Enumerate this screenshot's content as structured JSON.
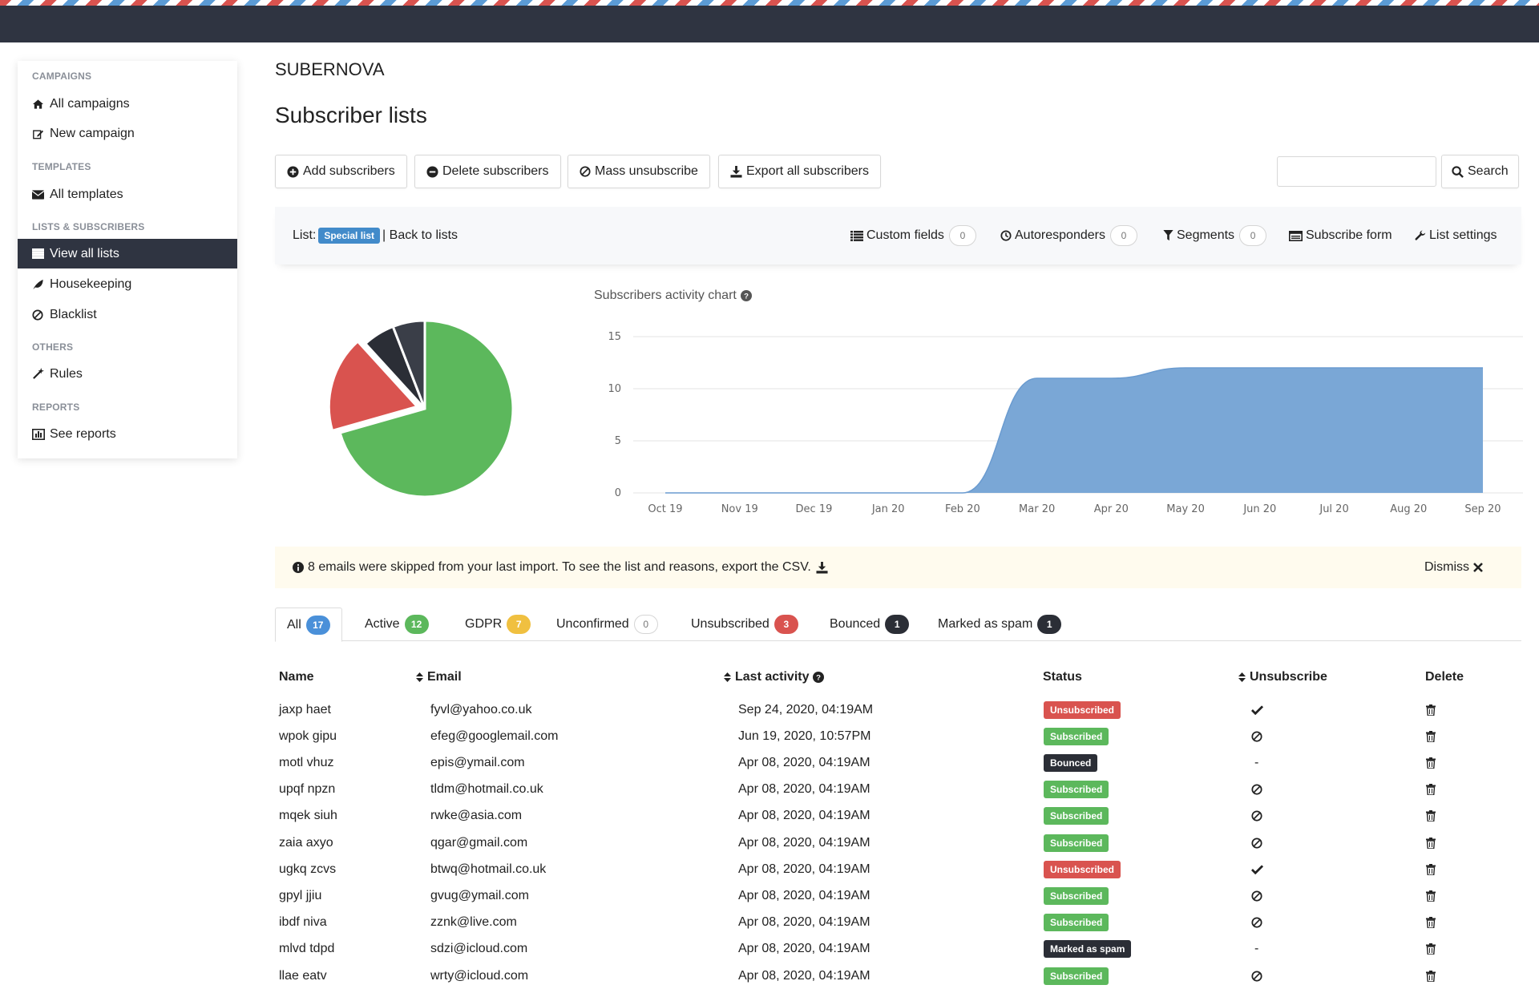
{
  "app": {
    "brand": "SUBERNOVA",
    "title": "Subscriber lists"
  },
  "sidebar": {
    "sections": [
      {
        "heading": "CAMPAIGNS",
        "items": [
          {
            "label": "All campaigns",
            "icon": "home-icon"
          },
          {
            "label": "New campaign",
            "icon": "edit-icon"
          }
        ]
      },
      {
        "heading": "TEMPLATES",
        "items": [
          {
            "label": "All templates",
            "icon": "envelope-icon"
          }
        ]
      },
      {
        "heading": "LISTS & SUBSCRIBERS",
        "items": [
          {
            "label": "View all lists",
            "icon": "list-icon",
            "active": true
          },
          {
            "label": "Housekeeping",
            "icon": "leaf-icon"
          },
          {
            "label": "Blacklist",
            "icon": "ban-icon"
          }
        ]
      },
      {
        "heading": "OTHERS",
        "items": [
          {
            "label": "Rules",
            "icon": "magic-wand-icon"
          }
        ]
      },
      {
        "heading": "REPORTS",
        "items": [
          {
            "label": "See reports",
            "icon": "bar-chart-icon"
          }
        ]
      }
    ]
  },
  "toolbar": {
    "add": "Add subscribers",
    "delete": "Delete subscribers",
    "mass_unsub": "Mass unsubscribe",
    "export": "Export all subscribers",
    "search_label": "Search",
    "search_value": ""
  },
  "listbar": {
    "list_prefix": "List:",
    "list_name": "Special list",
    "back": "| Back to lists",
    "custom_fields": "Custom fields",
    "custom_fields_count": "0",
    "autoresponders": "Autoresponders",
    "autoresponders_count": "0",
    "segments": "Segments",
    "segments_count": "0",
    "subscribe_form": "Subscribe form",
    "list_settings": "List settings"
  },
  "chart_title": "Subscribers activity chart",
  "chart_data": [
    {
      "type": "pie",
      "series": [
        {
          "name": "Active",
          "value": 12,
          "color": "#5cb85c"
        },
        {
          "name": "Unsubscribed",
          "value": 3,
          "color": "#d9534f"
        },
        {
          "name": "Bounced",
          "value": 1,
          "color": "#2b2e36"
        },
        {
          "name": "Marked as spam",
          "value": 1,
          "color": "#3a3e48"
        }
      ],
      "exploded_slice": "Unsubscribed"
    },
    {
      "type": "area",
      "title": "Subscribers activity chart",
      "categories": [
        "Oct 19",
        "Nov 19",
        "Dec 19",
        "Jan 20",
        "Feb 20",
        "Mar 20",
        "Apr 20",
        "May 20",
        "Jun 20",
        "Jul 20",
        "Aug 20",
        "Sep 20"
      ],
      "values": [
        0,
        0,
        0,
        0,
        0,
        11,
        11,
        12,
        12,
        12,
        12,
        12
      ],
      "ylim": [
        0,
        15
      ],
      "yticks": [
        0,
        5,
        10,
        15
      ],
      "grid": true,
      "color": "#7aa7d6"
    }
  ],
  "alert": {
    "message": "8 emails were skipped from your last import. To see the list and reasons, export the CSV.",
    "dismiss": "Dismiss"
  },
  "tabs": [
    {
      "label": "All",
      "count": "17",
      "color": "#4a90d9",
      "active": true
    },
    {
      "label": "Active",
      "count": "12",
      "color": "#5cb85c"
    },
    {
      "label": "GDPR",
      "count": "7",
      "color": "#f0c040"
    },
    {
      "label": "Unconfirmed",
      "count": "0",
      "color": "outline"
    },
    {
      "label": "Unsubscribed",
      "count": "3",
      "color": "#d9534f"
    },
    {
      "label": "Bounced",
      "count": "1",
      "color": "#2b2e36"
    },
    {
      "label": "Marked as spam",
      "count": "1",
      "color": "#2b2e36"
    }
  ],
  "table": {
    "headers": {
      "name": "Name",
      "email": "Email",
      "last_activity": "Last activity",
      "status": "Status",
      "unsubscribe": "Unsubscribe",
      "delete": "Delete"
    },
    "rows": [
      {
        "name": "jaxp haet",
        "email": "fyvl@yahoo.co.uk",
        "activity": "Sep 24, 2020, 04:19AM",
        "status": "Unsubscribed",
        "unsub": "check"
      },
      {
        "name": "wpok gipu",
        "email": "efeg@googlemail.com",
        "activity": "Jun 19, 2020, 10:57PM",
        "status": "Subscribed",
        "unsub": "ban"
      },
      {
        "name": "motl vhuz",
        "email": "epis@ymail.com",
        "activity": "Apr 08, 2020, 04:19AM",
        "status": "Bounced",
        "unsub": "-"
      },
      {
        "name": "upqf npzn",
        "email": "tldm@hotmail.co.uk",
        "activity": "Apr 08, 2020, 04:19AM",
        "status": "Subscribed",
        "unsub": "ban"
      },
      {
        "name": "mqek siuh",
        "email": "rwke@asia.com",
        "activity": "Apr 08, 2020, 04:19AM",
        "status": "Subscribed",
        "unsub": "ban"
      },
      {
        "name": "zaia axyo",
        "email": "qgar@gmail.com",
        "activity": "Apr 08, 2020, 04:19AM",
        "status": "Subscribed",
        "unsub": "ban"
      },
      {
        "name": "ugkq zcvs",
        "email": "btwq@hotmail.co.uk",
        "activity": "Apr 08, 2020, 04:19AM",
        "status": "Unsubscribed",
        "unsub": "check"
      },
      {
        "name": "gpyl jjiu",
        "email": "gvug@ymail.com",
        "activity": "Apr 08, 2020, 04:19AM",
        "status": "Subscribed",
        "unsub": "ban"
      },
      {
        "name": "ibdf niva",
        "email": "zznk@live.com",
        "activity": "Apr 08, 2020, 04:19AM",
        "status": "Subscribed",
        "unsub": "ban"
      },
      {
        "name": "mlvd tdpd",
        "email": "sdzi@icloud.com",
        "activity": "Apr 08, 2020, 04:19AM",
        "status": "Marked as spam",
        "unsub": "-"
      },
      {
        "name": "llae eatv",
        "email": "wrty@icloud.com",
        "activity": "Apr 08, 2020, 04:19AM",
        "status": "Subscribed",
        "unsub": "ban"
      }
    ],
    "status_colors": {
      "Unsubscribed": "#d9534f",
      "Subscribed": "#5cb85c",
      "Bounced": "#2b2e36",
      "Marked as spam": "#2b2e36"
    }
  }
}
